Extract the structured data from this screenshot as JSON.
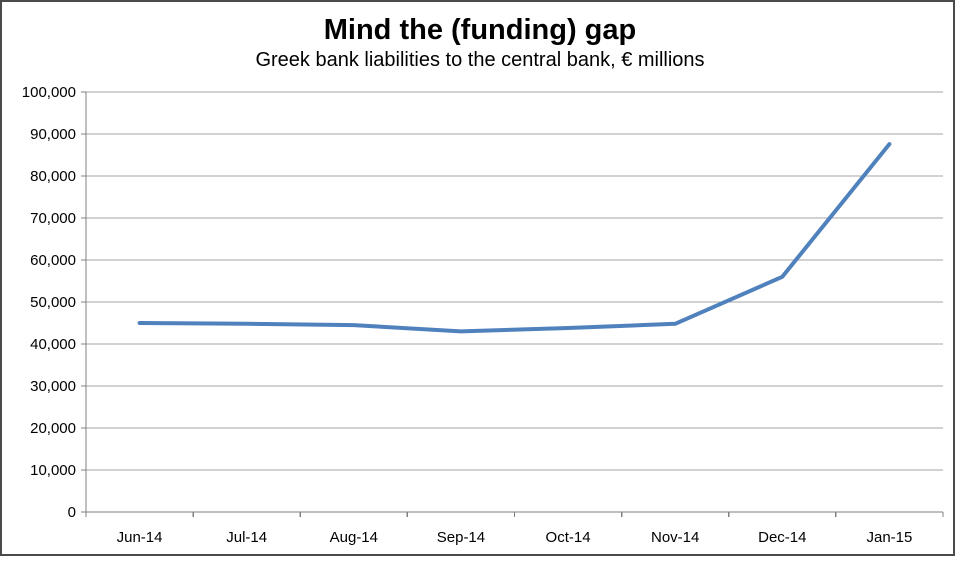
{
  "page": {
    "background": "#ffffff",
    "border_color": "#4a4a4a"
  },
  "chart_data": {
    "type": "line",
    "title": "Mind the (funding) gap",
    "subtitle": "Greek bank liabilities to the central bank, € millions",
    "categories": [
      "Jun-14",
      "Jul-14",
      "Aug-14",
      "Sep-14",
      "Oct-14",
      "Nov-14",
      "Dec-14",
      "Jan-15"
    ],
    "values": [
      45000,
      44800,
      44500,
      43000,
      43800,
      44800,
      56000,
      87600
    ],
    "xlabel": "",
    "ylabel": "",
    "ylim": [
      0,
      100000
    ],
    "ytick_step": 10000,
    "ytick_labels": [
      "0",
      "10,000",
      "20,000",
      "30,000",
      "40,000",
      "50,000",
      "60,000",
      "70,000",
      "80,000",
      "90,000",
      "100,000"
    ],
    "grid": "horizontal-only",
    "legend": "none",
    "colors": {
      "line": "#4f81bd",
      "gridline": "#a6a6a6",
      "axis": "#808080",
      "text": "#000000"
    }
  }
}
